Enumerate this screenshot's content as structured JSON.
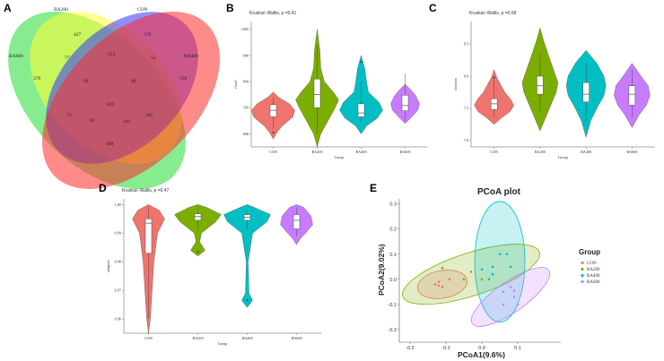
{
  "panels": {
    "A": "A",
    "B": "B",
    "C": "C",
    "D": "D",
    "E": "E"
  },
  "colors": {
    "CON": "#f0746e",
    "BA200": "#7cae00",
    "BA400": "#00bfc4",
    "BA600": "#c77cff",
    "venn_ba600": "#22dd33",
    "venn_ba200": "#ffff33",
    "venn_con": "#3333ff",
    "venn_ba400": "#ff2a2a"
  },
  "chart_data": [
    {
      "type": "venn",
      "panel": "A",
      "sets": [
        "BA600",
        "BA200",
        "CON",
        "BA400"
      ],
      "labels": {
        "ba600_only": "370",
        "ba200_only": "427",
        "con_only": "378",
        "ba400_only": "336",
        "ba600_ba200": "77",
        "ba200_con": "153",
        "con_ba400": "55",
        "ba600_ba400": "108",
        "ba600_ba200_con": "93",
        "ba200_con_ba400": "96",
        "ba600_con": "73",
        "ba200_ba400": "102",
        "all": "619",
        "ba600_con_ba400": "93",
        "ba600_ba200_ba400": "141"
      }
    },
    {
      "type": "violin",
      "panel": "B",
      "title": "Kruskal−Wallis, p =0.41",
      "xlabel": "Group",
      "ylabel": "chao1",
      "categories": [
        "CON",
        "BA200",
        "BA400",
        "BA600"
      ],
      "yticks": [
        "600",
        "700",
        "800",
        "900",
        "1000"
      ],
      "ylim": [
        550,
        1030
      ],
      "boxes": [
        {
          "group": "CON",
          "q1": 665,
          "median": 690,
          "q3": 712,
          "outliers": [
            605
          ]
        },
        {
          "group": "BA200",
          "q1": 700,
          "median": 750,
          "q3": 810,
          "outliers": []
        },
        {
          "group": "BA400",
          "q1": 665,
          "median": 680,
          "q3": 715,
          "outliers": [
            875
          ]
        },
        {
          "group": "BA600",
          "q1": 688,
          "median": 708,
          "q3": 748,
          "outliers": []
        }
      ]
    },
    {
      "type": "violin",
      "panel": "C",
      "title": "Kruskal−Wallis, p =0.58",
      "xlabel": "Group",
      "ylabel": "shannon",
      "categories": [
        "CON",
        "BA200",
        "BA400",
        "BA600"
      ],
      "yticks": [
        "7.0",
        "7.5",
        "8.0",
        "8.5"
      ],
      "ylim": [
        6.9,
        8.85
      ],
      "boxes": [
        {
          "group": "CON",
          "q1": 7.48,
          "median": 7.57,
          "q3": 7.65,
          "outliers": [
            7.98
          ]
        },
        {
          "group": "BA200",
          "q1": 7.72,
          "median": 7.85,
          "q3": 8.0,
          "outliers": []
        },
        {
          "group": "BA400",
          "q1": 7.6,
          "median": 7.72,
          "q3": 7.9,
          "outliers": []
        },
        {
          "group": "BA600",
          "q1": 7.55,
          "median": 7.72,
          "q3": 7.85,
          "outliers": []
        }
      ]
    },
    {
      "type": "violin",
      "panel": "D",
      "title": "Kruskal−Wallis, p =0.47",
      "xlabel": "Group",
      "ylabel": "simpson",
      "categories": [
        "CON",
        "BA200",
        "BA400",
        "BA600"
      ],
      "yticks": [
        "0.96",
        "0.97",
        "0.98",
        "0.99",
        "1.00"
      ],
      "ylim": [
        0.955,
        1.002
      ],
      "boxes": [
        {
          "group": "CON",
          "q1": 0.983,
          "median": 0.9935,
          "q3": 0.995,
          "outliers": []
        },
        {
          "group": "BA200",
          "q1": 0.9945,
          "median": 0.9958,
          "q3": 0.9968,
          "outliers": [
            0.9835
          ]
        },
        {
          "group": "BA400",
          "q1": 0.9945,
          "median": 0.9955,
          "q3": 0.9965,
          "outliers": [
            0.9665
          ]
        },
        {
          "group": "BA600",
          "q1": 0.9915,
          "median": 0.9945,
          "q3": 0.9965,
          "outliers": []
        }
      ]
    },
    {
      "type": "scatter",
      "panel": "E",
      "title": "PCoA plot",
      "xlabel": "PCoA1(9.6%)",
      "ylabel": "PCoA2(9.02%)",
      "xticks": [
        "-0.2",
        "-0.1",
        "0.0",
        "0.1"
      ],
      "yticks": [
        "-0.2",
        "-0.1",
        "0.0",
        "0.1",
        "0.2",
        "0.3"
      ],
      "xlim": [
        -0.23,
        0.22
      ],
      "ylim": [
        -0.25,
        0.32
      ],
      "legend_title": "Group",
      "legend_position": "right",
      "series": [
        {
          "name": "CON",
          "points": [
            [
              -0.13,
              -0.02
            ],
            [
              -0.12,
              -0.025
            ],
            [
              -0.11,
              -0.03
            ],
            [
              -0.09,
              0.0
            ],
            [
              -0.12,
              -0.01
            ]
          ]
        },
        {
          "name": "BA200",
          "points": [
            [
              -0.11,
              0.045
            ],
            [
              -0.03,
              0.03
            ],
            [
              0.0,
              0.0
            ],
            [
              0.02,
              0.0
            ],
            [
              -0.05,
              0.0
            ]
          ]
        },
        {
          "name": "BA400",
          "points": [
            [
              0.0,
              0.04
            ],
            [
              0.03,
              0.05
            ],
            [
              0.05,
              0.1
            ],
            [
              0.07,
              0.1
            ],
            [
              0.08,
              0.05
            ],
            [
              0.03,
              0.02
            ]
          ]
        },
        {
          "name": "BA600",
          "points": [
            [
              0.06,
              -0.05
            ],
            [
              0.08,
              -0.03
            ],
            [
              0.09,
              -0.045
            ],
            [
              0.09,
              -0.07
            ],
            [
              0.1,
              -0.1
            ],
            [
              0.06,
              -0.1
            ]
          ]
        }
      ]
    }
  ]
}
